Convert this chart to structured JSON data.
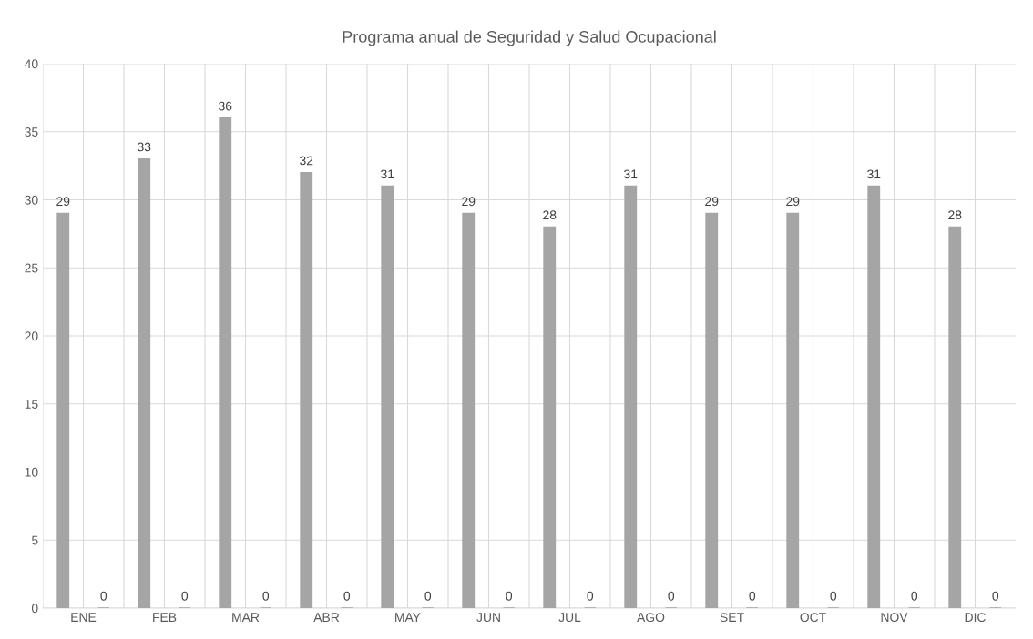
{
  "chart_data": {
    "type": "bar",
    "title": "Programa anual de Seguridad y Salud Ocupacional",
    "categories": [
      "ENE",
      "FEB",
      "MAR",
      "ABR",
      "MAY",
      "JUN",
      "JUL",
      "AGO",
      "SET",
      "OCT",
      "NOV",
      "DIC"
    ],
    "series": [
      {
        "color": "#a5a5a5",
        "values": [
          29,
          33,
          36,
          32,
          31,
          29,
          28,
          31,
          29,
          29,
          31,
          28
        ]
      },
      {
        "color": "#a5a5a5",
        "values": [
          0,
          0,
          0,
          0,
          0,
          0,
          0,
          0,
          0,
          0,
          0,
          0
        ]
      }
    ],
    "ylim": [
      0,
      40
    ],
    "yticks": [
      0,
      5,
      10,
      15,
      20,
      25,
      30,
      35,
      40
    ],
    "grid": true,
    "data_labels": true
  }
}
